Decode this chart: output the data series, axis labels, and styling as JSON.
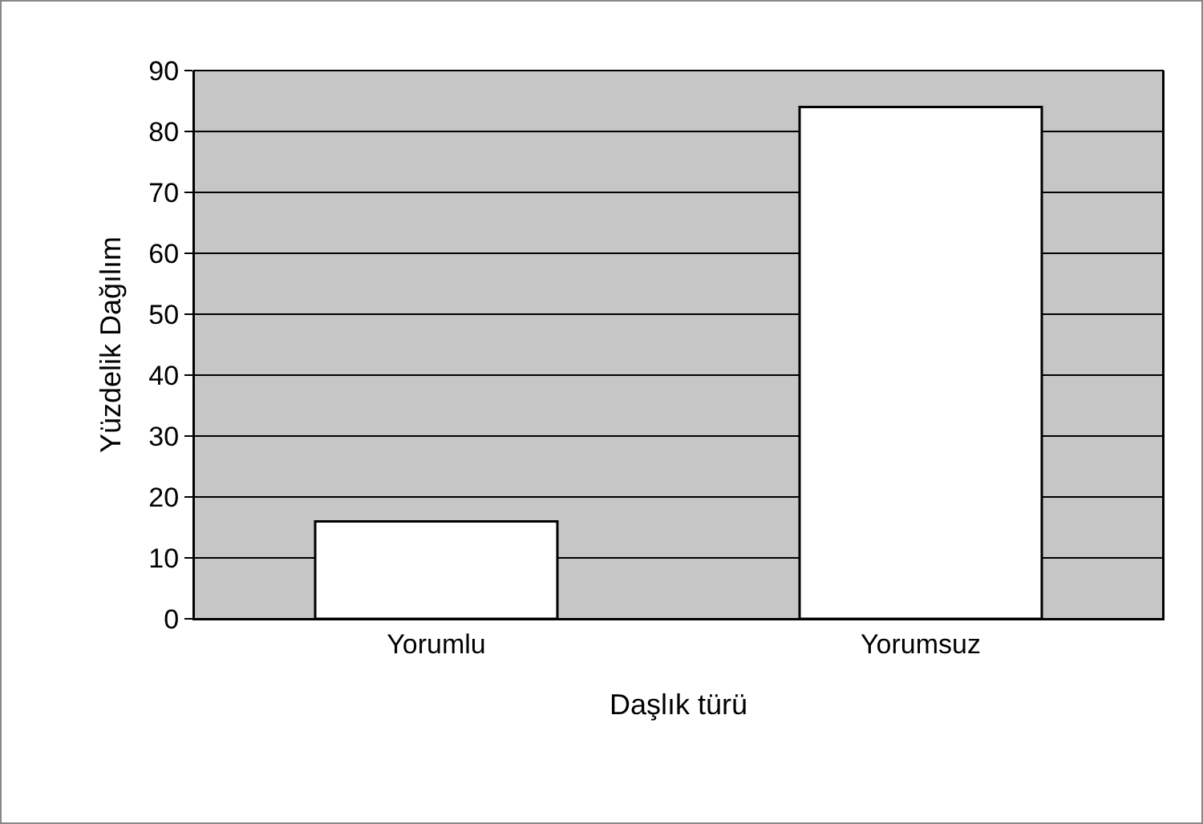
{
  "chart_data": {
    "type": "bar",
    "xlabel": "Daşlık türü",
    "ylabel": "Yüzdelik Dağılım",
    "categories": [
      "Yorumlu",
      "Yorumsuz"
    ],
    "values": [
      16,
      84
    ],
    "color": "#ffffff",
    "ylim": [
      0,
      90
    ],
    "yticks": [
      0,
      10,
      20,
      30,
      40,
      50,
      60,
      70,
      80,
      90
    ],
    "grid": "y"
  }
}
